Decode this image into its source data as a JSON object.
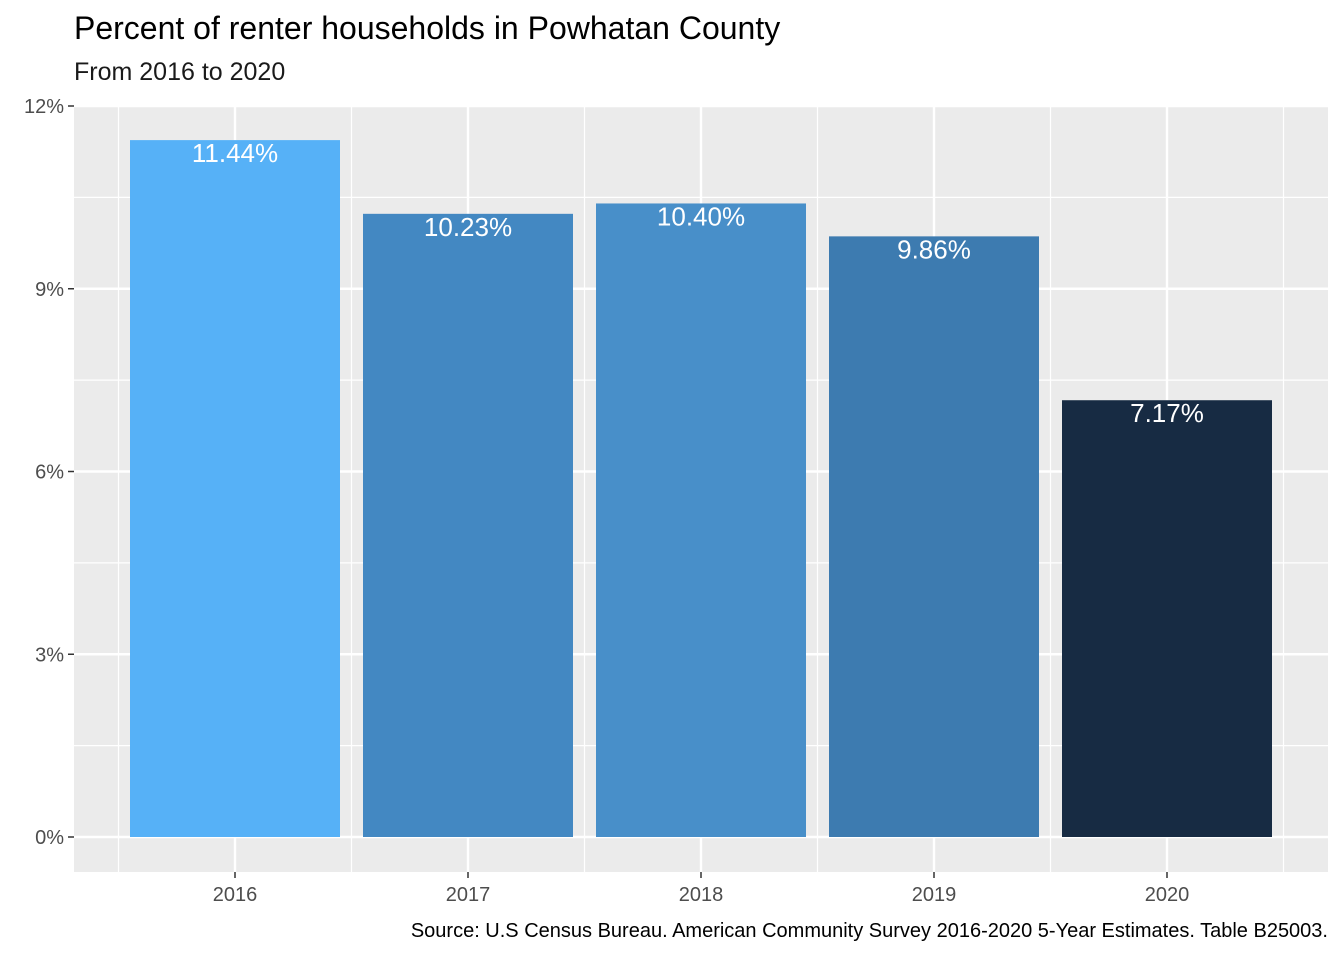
{
  "chart_data": {
    "type": "bar",
    "title": "Percent of renter households in Powhatan County",
    "subtitle": "From 2016 to 2020",
    "caption": "Source: U.S Census Bureau. American Community Survey 2016-2020 5-Year Estimates. Table B25003.",
    "xlabel": "",
    "ylabel": "",
    "categories": [
      "2016",
      "2017",
      "2018",
      "2019",
      "2020"
    ],
    "values": [
      11.44,
      10.23,
      10.4,
      9.86,
      7.17
    ],
    "value_labels": [
      "11.44%",
      "10.23%",
      "10.40%",
      "9.86%",
      "7.17%"
    ],
    "bar_colors": [
      "#56b1f7",
      "#4388c2",
      "#488fc9",
      "#3d7bb0",
      "#172b43"
    ],
    "ylim": [
      0,
      12
    ],
    "y_ticks": [
      0,
      3,
      6,
      9,
      12
    ],
    "y_tick_labels": [
      "0%",
      "3%",
      "6%",
      "9%",
      "12%"
    ],
    "grid": true,
    "legend": "none",
    "panel_background": "#ebebeb",
    "grid_color": "#ffffff"
  }
}
